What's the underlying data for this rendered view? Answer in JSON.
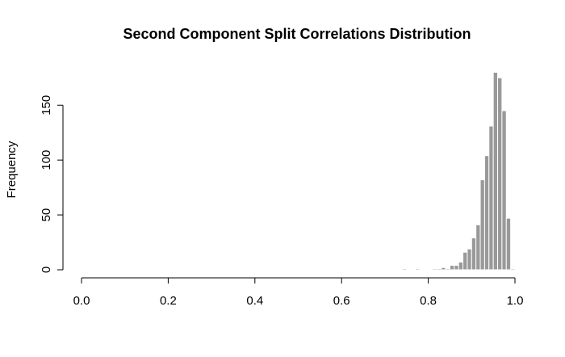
{
  "chart_data": {
    "type": "bar",
    "title": "Second Component Split Correlations Distribution",
    "xlabel": "",
    "ylabel": "Frequency",
    "xlim": [
      0,
      1
    ],
    "ylim": [
      0,
      180
    ],
    "x_ticks": [
      0,
      0.2,
      0.4,
      0.6,
      0.8,
      1.0
    ],
    "x_tick_labels": [
      "0.0",
      "0.2",
      "0.4",
      "0.6",
      "0.8",
      "1.0"
    ],
    "y_ticks": [
      0,
      50,
      100,
      150
    ],
    "y_tick_labels": [
      "0",
      "50",
      "100",
      "150"
    ],
    "bin_width": 0.01,
    "bins": [
      {
        "x0": 0.74,
        "count": 1
      },
      {
        "x0": 0.77,
        "count": 1
      },
      {
        "x0": 0.81,
        "count": 1
      },
      {
        "x0": 0.82,
        "count": 1
      },
      {
        "x0": 0.83,
        "count": 2
      },
      {
        "x0": 0.84,
        "count": 1
      },
      {
        "x0": 0.85,
        "count": 4
      },
      {
        "x0": 0.86,
        "count": 4
      },
      {
        "x0": 0.87,
        "count": 7
      },
      {
        "x0": 0.88,
        "count": 16
      },
      {
        "x0": 0.89,
        "count": 19
      },
      {
        "x0": 0.9,
        "count": 29
      },
      {
        "x0": 0.91,
        "count": 41
      },
      {
        "x0": 0.92,
        "count": 82
      },
      {
        "x0": 0.93,
        "count": 104
      },
      {
        "x0": 0.94,
        "count": 131
      },
      {
        "x0": 0.95,
        "count": 180
      },
      {
        "x0": 0.96,
        "count": 175
      },
      {
        "x0": 0.97,
        "count": 145
      },
      {
        "x0": 0.98,
        "count": 47
      },
      {
        "x0": 0.99,
        "count": 1
      }
    ],
    "bar_color": "#999999",
    "bar_border_color": "#ffffff",
    "grid": false,
    "legend": "none"
  }
}
